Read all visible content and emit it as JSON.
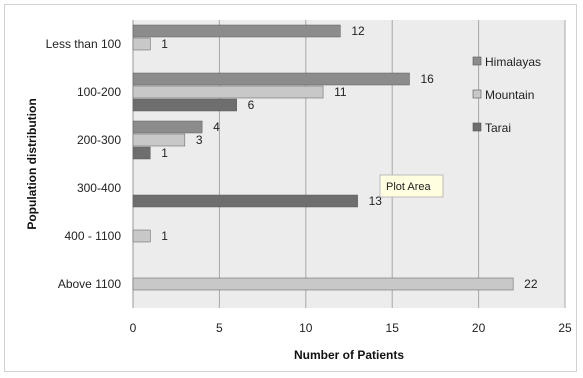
{
  "chart_data": {
    "type": "bar",
    "orientation": "horizontal",
    "categories": [
      "Less than 100",
      "100-200",
      "200-300",
      "300-400",
      "400 - 1100",
      "Above 1100"
    ],
    "series": [
      {
        "name": "Himalayas",
        "values": [
          12,
          16,
          4,
          null,
          null,
          null
        ],
        "color": "#8c8c8c"
      },
      {
        "name": "Mountain",
        "values": [
          1,
          11,
          3,
          null,
          1,
          22
        ],
        "color": "#c8c8c8"
      },
      {
        "name": "Tarai",
        "values": [
          null,
          6,
          1,
          13,
          null,
          null
        ],
        "color": "#6e6e6e"
      }
    ],
    "title": "",
    "xlabel": "Number of Patients",
    "ylabel": "Population distribution",
    "xlim": [
      0,
      25
    ],
    "xticks": [
      "0",
      "5",
      "10",
      "15",
      "20",
      "25"
    ],
    "grid": true,
    "legend_position": "top-right",
    "tooltip": "Plot Area",
    "colors": {
      "plot_background": "#ececec",
      "gridline": "#a8a8a8",
      "tooltip_background": "#fffee0"
    }
  }
}
